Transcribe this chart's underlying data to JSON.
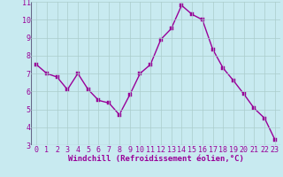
{
  "x": [
    0,
    1,
    2,
    3,
    4,
    5,
    6,
    7,
    8,
    9,
    10,
    11,
    12,
    13,
    14,
    15,
    16,
    17,
    18,
    19,
    20,
    21,
    22,
    23
  ],
  "y": [
    7.5,
    7.0,
    6.8,
    6.1,
    7.0,
    6.1,
    5.5,
    5.35,
    4.7,
    5.8,
    7.0,
    7.5,
    8.9,
    9.5,
    10.8,
    10.3,
    10.0,
    8.35,
    7.3,
    6.6,
    5.85,
    5.05,
    4.5,
    3.3
  ],
  "line_color": "#990099",
  "marker_color": "#990099",
  "bg_color": "#c8eaf0",
  "grid_color": "#aacccc",
  "xlabel": "Windchill (Refroidissement éolien,°C)",
  "xlabel_color": "#990099",
  "xtick_color": "#990099",
  "ytick_color": "#990099",
  "xlim": [
    -0.5,
    23.5
  ],
  "ylim": [
    3,
    11
  ],
  "yticks": [
    3,
    4,
    5,
    6,
    7,
    8,
    9,
    10,
    11
  ],
  "xticks": [
    0,
    1,
    2,
    3,
    4,
    5,
    6,
    7,
    8,
    9,
    10,
    11,
    12,
    13,
    14,
    15,
    16,
    17,
    18,
    19,
    20,
    21,
    22,
    23
  ],
  "marker_size": 2.5,
  "line_width": 1.0,
  "tick_font_size": 6,
  "label_font_size": 6.5
}
